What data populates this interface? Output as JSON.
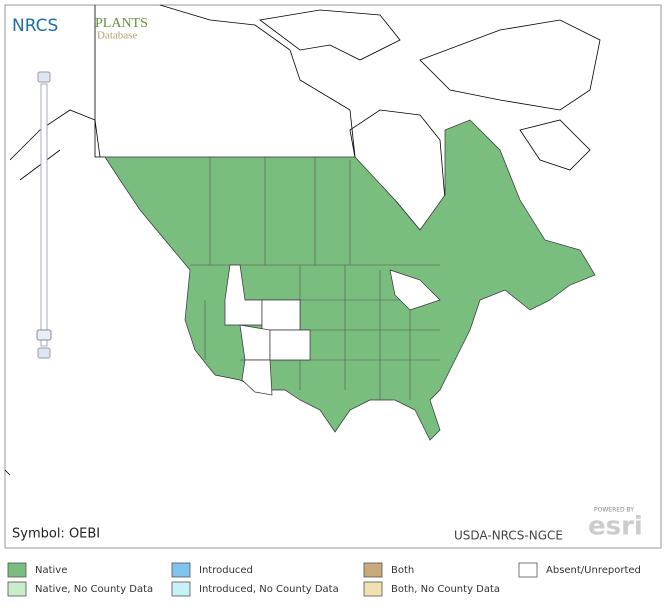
{
  "header": {
    "logo": "NRCS",
    "plants": "PLANTS",
    "database": "Database"
  },
  "map": {
    "symbol": "Symbol: OEBI",
    "credit": "USDA-NRCS-NGCE",
    "powered_by": "POWERED BY",
    "esri": "esri"
  },
  "legend": [
    {
      "label": "Native",
      "color": "#79bd7f"
    },
    {
      "label": "Introduced",
      "color": "#7fc4ef"
    },
    {
      "label": "Both",
      "color": "#c9aa7b"
    },
    {
      "label": "Absent/Unreported",
      "color": "#ffffff"
    },
    {
      "label": "Native, No County Data",
      "color": "#c9ecca"
    },
    {
      "label": "Introduced, No County Data",
      "color": "#c8f0f8"
    },
    {
      "label": "Both, No County Data",
      "color": "#f1e0b0"
    }
  ]
}
